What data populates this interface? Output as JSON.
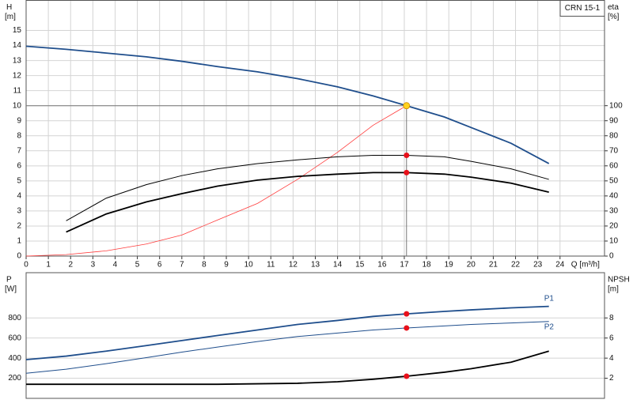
{
  "chart_data": [
    {
      "type": "line",
      "title": "CRN 15-1",
      "ylabel": "H",
      "yunit": "[m]",
      "y2label": "eta",
      "y2unit": "[%]",
      "xlabel": "Q [m³/h]",
      "x": [
        0,
        1.8,
        3.6,
        5.4,
        7,
        8.6,
        10.4,
        12.2,
        14,
        15.6,
        17.1,
        18.8,
        20,
        21.8,
        23.5
      ],
      "xlim": [
        0,
        26
      ],
      "xticks": [
        0,
        1,
        2,
        3,
        4,
        5,
        6,
        7,
        8,
        9,
        10,
        11,
        12,
        13,
        14,
        15,
        16,
        17,
        18,
        19,
        20,
        21,
        22,
        23,
        24
      ],
      "ylim": [
        0,
        17
      ],
      "yticks": [
        0,
        1,
        2,
        3,
        4,
        5,
        6,
        7,
        8,
        9,
        10,
        11,
        12,
        13,
        14,
        15
      ],
      "y2lim": [
        0,
        170
      ],
      "y2ticks": [
        0,
        10,
        20,
        30,
        40,
        50,
        60,
        70,
        80,
        90,
        100
      ],
      "grid": true,
      "duty_point": {
        "x": 17.1,
        "y": 10,
        "color": "#ffd21f"
      },
      "series": [
        {
          "color": "#1f4e8c",
          "width": 1.8,
          "values": [
            13.95,
            13.75,
            13.5,
            13.25,
            12.95,
            12.6,
            12.25,
            11.8,
            11.25,
            10.65,
            10.0,
            9.25,
            8.55,
            7.5,
            6.15
          ]
        },
        {
          "color": "#ff3b3b",
          "width": 0.8,
          "axis": "y2",
          "values": [
            0,
            1,
            3.5,
            8,
            14,
            24,
            35,
            51,
            69,
            87,
            100,
            null,
            null,
            null,
            null
          ]
        },
        {
          "color": "#000000",
          "width": 1,
          "axis": "y2",
          "marker_color": "#e8101a",
          "values": [
            null,
            23.5,
            38.5,
            47.5,
            53.5,
            58,
            61.5,
            64,
            66,
            67,
            67,
            66,
            63,
            58,
            51
          ]
        },
        {
          "color": "#000000",
          "width": 1.8,
          "axis": "y2",
          "marker_color": "#e8101a",
          "values": [
            null,
            16,
            28,
            36,
            41.5,
            46.5,
            50.5,
            53,
            54.5,
            55.5,
            55.5,
            54.5,
            52.5,
            48.5,
            42.5
          ]
        }
      ]
    },
    {
      "type": "line",
      "ylabel": "P",
      "yunit": "[W]",
      "y2label": "NPSH",
      "y2unit": "[m]",
      "x": [
        0,
        1.8,
        3.6,
        5.4,
        7,
        8.6,
        10.4,
        12.2,
        14,
        15.6,
        17.1,
        18.8,
        20,
        21.8,
        23.5
      ],
      "xlim": [
        0,
        26
      ],
      "ylim": [
        0,
        1250
      ],
      "yticks": [
        200,
        400,
        600,
        800
      ],
      "y2lim": [
        0,
        12.5
      ],
      "y2ticks": [
        2,
        4,
        6,
        8
      ],
      "grid": true,
      "series": [
        {
          "name": "P1",
          "color": "#1f4e8c",
          "width": 1.8,
          "marker_color": "#e8101a",
          "values": [
            385,
            420,
            470,
            525,
            575,
            625,
            680,
            735,
            775,
            815,
            840,
            865,
            880,
            900,
            915
          ]
        },
        {
          "name": "P2",
          "color": "#1f4e8c",
          "width": 1,
          "marker_color": "#e8101a",
          "values": [
            250,
            290,
            345,
            405,
            460,
            510,
            565,
            615,
            650,
            680,
            700,
            720,
            735,
            750,
            765
          ]
        },
        {
          "color": "#000000",
          "width": 1.8,
          "axis": "y2",
          "marker_color": "#e8101a",
          "values": [
            1.4,
            1.4,
            1.4,
            1.4,
            1.4,
            1.4,
            1.45,
            1.5,
            1.65,
            1.9,
            2.2,
            2.6,
            2.95,
            3.6,
            4.7
          ]
        }
      ]
    }
  ]
}
